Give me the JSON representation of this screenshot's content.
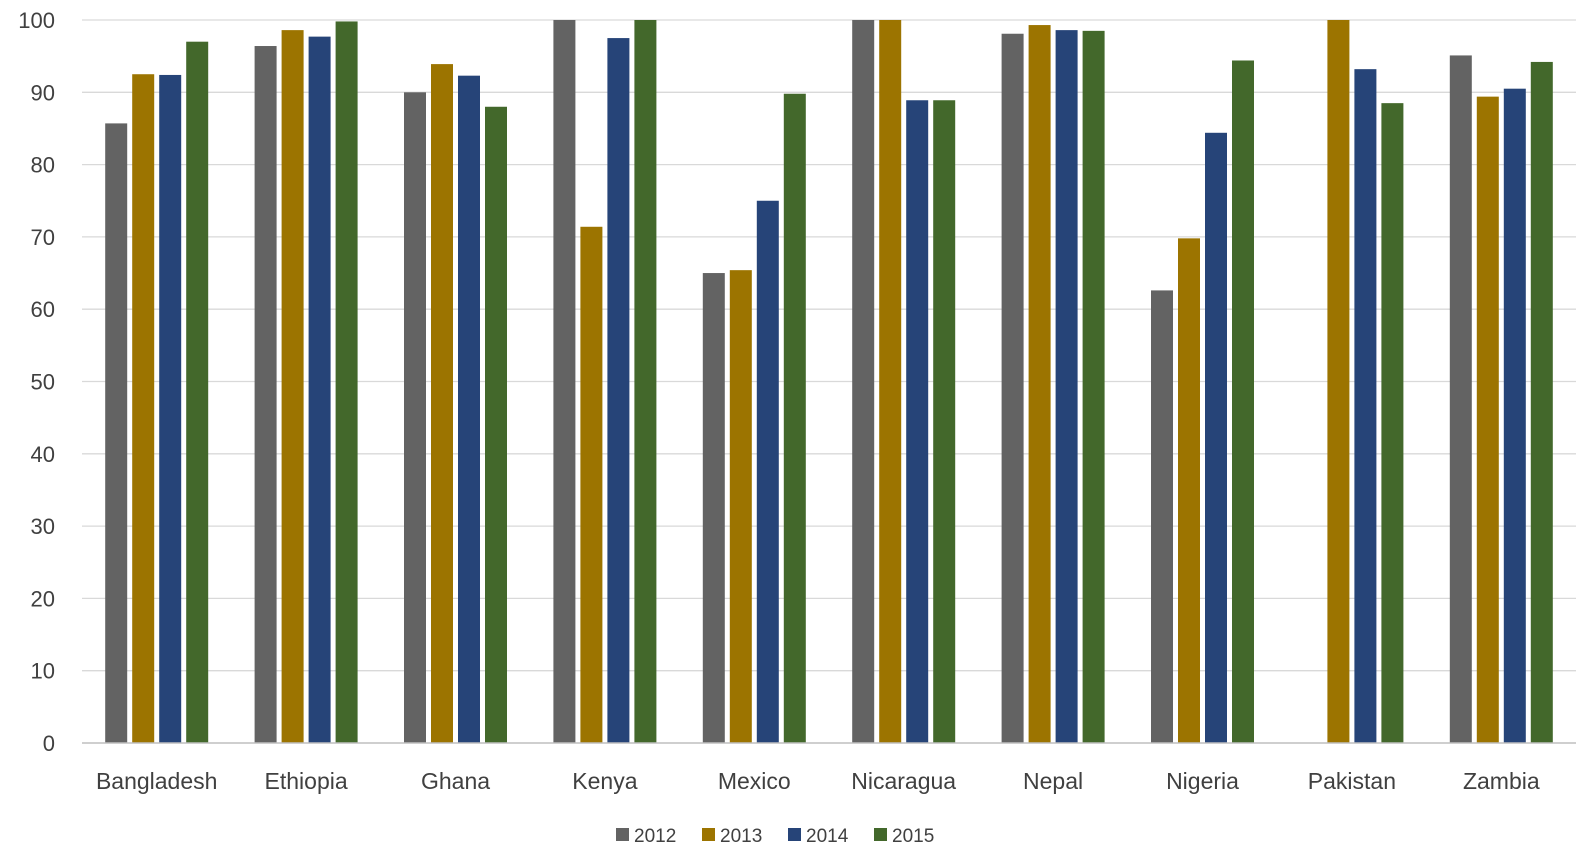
{
  "chart_data": {
    "type": "bar",
    "title": "",
    "xlabel": "",
    "ylabel": "",
    "ylim": [
      0,
      100
    ],
    "yticks": [
      0,
      10,
      20,
      30,
      40,
      50,
      60,
      70,
      80,
      90,
      100
    ],
    "grid": true,
    "legend_position": "bottom",
    "categories": [
      "Bangladesh",
      "Ethiopia",
      "Ghana",
      "Kenya",
      "Mexico",
      "Nicaragua",
      "Nepal",
      "Nigeria",
      "Pakistan",
      "Zambia"
    ],
    "series": [
      {
        "name": "2012",
        "color": "#636363",
        "values": [
          85.7,
          96.4,
          90.0,
          100,
          65.0,
          100,
          98.1,
          62.6,
          null,
          95.1
        ]
      },
      {
        "name": "2013",
        "color": "#9c7400",
        "values": [
          92.5,
          98.6,
          93.9,
          71.4,
          65.4,
          100,
          99.3,
          69.8,
          100,
          89.4
        ]
      },
      {
        "name": "2014",
        "color": "#264478",
        "values": [
          92.4,
          97.7,
          92.3,
          97.5,
          75.0,
          88.9,
          98.6,
          84.4,
          93.2,
          90.5
        ]
      },
      {
        "name": "2015",
        "color": "#43682b",
        "values": [
          97.0,
          99.8,
          88.0,
          100,
          89.8,
          88.9,
          98.5,
          94.4,
          88.5,
          94.2
        ]
      }
    ]
  }
}
